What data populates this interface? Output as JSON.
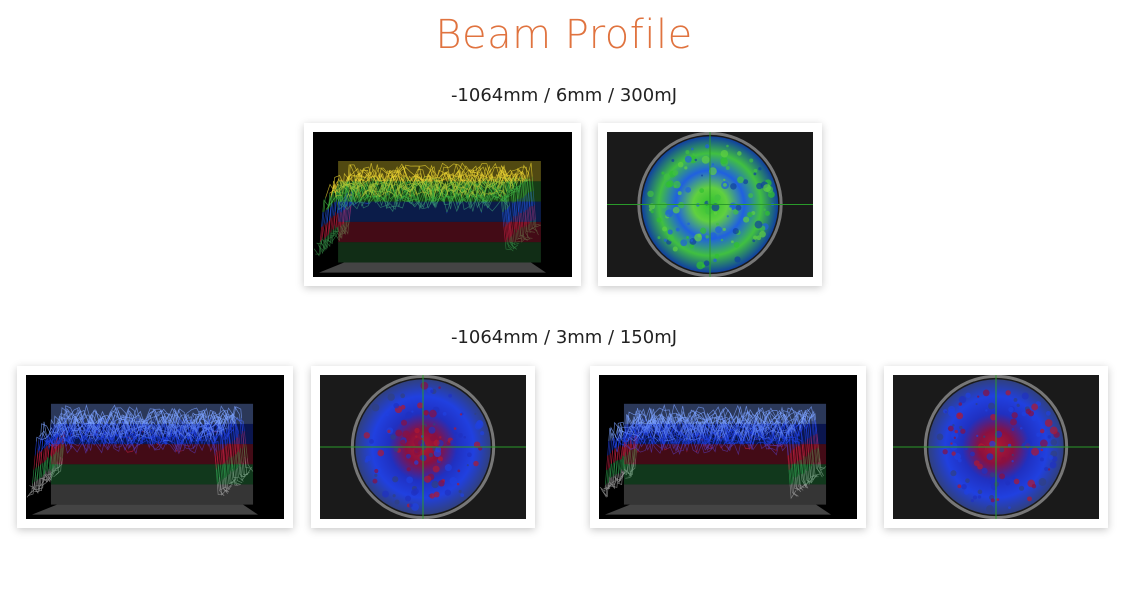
{
  "title": "Beam Profile",
  "sections": [
    {
      "caption": "-1064mm / 6mm / 300mJ"
    },
    {
      "caption": "-1064mm / 3mm / 150mJ"
    }
  ]
}
